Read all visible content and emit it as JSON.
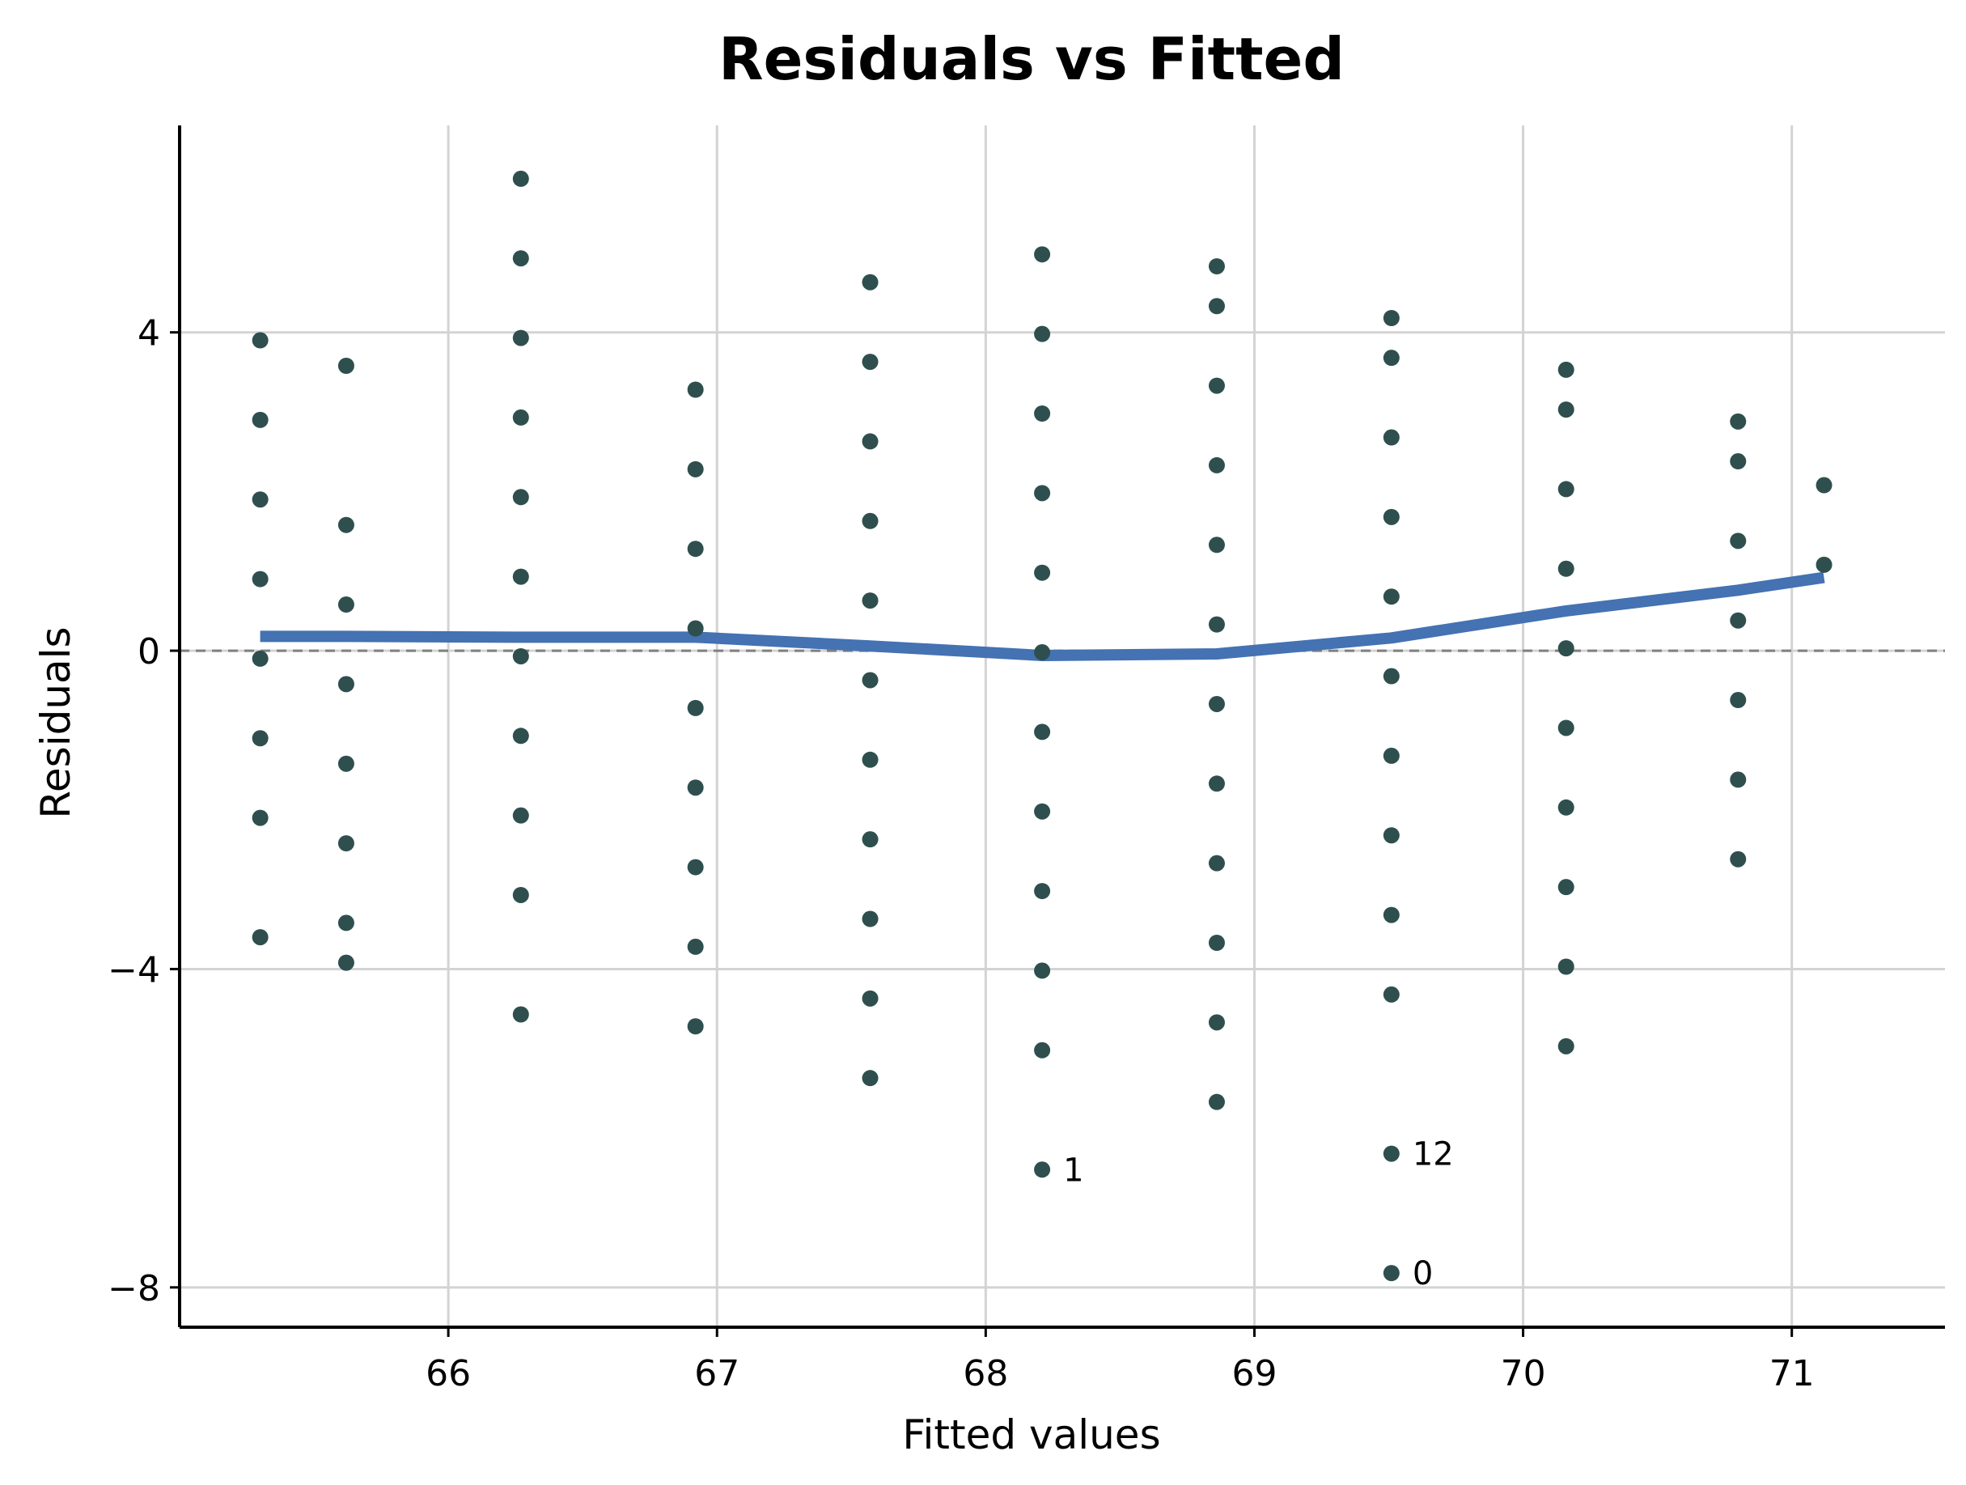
{
  "chart_data": {
    "type": "scatter",
    "title": "Residuals vs Fitted",
    "xlabel": "Fitted values",
    "ylabel": "Residuals",
    "xlim": [
      65.0,
      71.57
    ],
    "ylim": [
      -8.5,
      6.6
    ],
    "x_ticks": [
      66,
      67,
      68,
      69,
      70,
      71
    ],
    "y_ticks": [
      4,
      0,
      -4,
      -8
    ],
    "x_tick_labels": [
      "66",
      "67",
      "68",
      "69",
      "70",
      "71"
    ],
    "y_tick_labels": [
      "4",
      "0",
      "−4",
      "−8"
    ],
    "grid": true,
    "zero_reference_line": true,
    "colors": {
      "points": "#2f4f4f",
      "smooth_line": "#4472b2",
      "grid": "#d3d3d3",
      "reference_line": "#808080",
      "axis": "#000000"
    },
    "points": [
      {
        "x": 65.3,
        "y": 3.9
      },
      {
        "x": 65.3,
        "y": 2.9
      },
      {
        "x": 65.3,
        "y": 1.9
      },
      {
        "x": 65.3,
        "y": 0.9
      },
      {
        "x": 65.3,
        "y": -0.1
      },
      {
        "x": 65.3,
        "y": -1.1
      },
      {
        "x": 65.3,
        "y": -2.1
      },
      {
        "x": 65.3,
        "y": -3.6
      },
      {
        "x": 65.62,
        "y": 3.58
      },
      {
        "x": 65.62,
        "y": 1.58
      },
      {
        "x": 65.62,
        "y": 0.58
      },
      {
        "x": 65.62,
        "y": -0.42
      },
      {
        "x": 65.62,
        "y": -1.42
      },
      {
        "x": 65.62,
        "y": -2.42
      },
      {
        "x": 65.62,
        "y": -3.42
      },
      {
        "x": 65.62,
        "y": -3.92
      },
      {
        "x": 66.27,
        "y": 5.93
      },
      {
        "x": 66.27,
        "y": 4.93
      },
      {
        "x": 66.27,
        "y": 3.93
      },
      {
        "x": 66.27,
        "y": 2.93
      },
      {
        "x": 66.27,
        "y": 1.93
      },
      {
        "x": 66.27,
        "y": 0.93
      },
      {
        "x": 66.27,
        "y": -0.07
      },
      {
        "x": 66.27,
        "y": -1.07
      },
      {
        "x": 66.27,
        "y": -2.07
      },
      {
        "x": 66.27,
        "y": -3.07
      },
      {
        "x": 66.27,
        "y": -4.57
      },
      {
        "x": 66.92,
        "y": 3.28
      },
      {
        "x": 66.92,
        "y": 2.28
      },
      {
        "x": 66.92,
        "y": 1.28
      },
      {
        "x": 66.92,
        "y": 0.28
      },
      {
        "x": 66.92,
        "y": -0.72
      },
      {
        "x": 66.92,
        "y": -1.72
      },
      {
        "x": 66.92,
        "y": -2.72
      },
      {
        "x": 66.92,
        "y": -3.72
      },
      {
        "x": 66.92,
        "y": -4.72
      },
      {
        "x": 67.57,
        "y": 4.63
      },
      {
        "x": 67.57,
        "y": 3.63
      },
      {
        "x": 67.57,
        "y": 2.63
      },
      {
        "x": 67.57,
        "y": 1.63
      },
      {
        "x": 67.57,
        "y": 0.63
      },
      {
        "x": 67.57,
        "y": -0.37
      },
      {
        "x": 67.57,
        "y": -1.37
      },
      {
        "x": 67.57,
        "y": -2.37
      },
      {
        "x": 67.57,
        "y": -3.37
      },
      {
        "x": 67.57,
        "y": -4.37
      },
      {
        "x": 67.57,
        "y": -5.37
      },
      {
        "x": 68.21,
        "y": 4.98
      },
      {
        "x": 68.21,
        "y": 3.98
      },
      {
        "x": 68.21,
        "y": 2.98
      },
      {
        "x": 68.21,
        "y": 1.98
      },
      {
        "x": 68.21,
        "y": 0.98
      },
      {
        "x": 68.21,
        "y": -0.02
      },
      {
        "x": 68.21,
        "y": -1.02
      },
      {
        "x": 68.21,
        "y": -2.02
      },
      {
        "x": 68.21,
        "y": -3.02
      },
      {
        "x": 68.21,
        "y": -4.02
      },
      {
        "x": 68.21,
        "y": -5.02
      },
      {
        "x": 68.21,
        "y": -6.52,
        "label": "1"
      },
      {
        "x": 68.86,
        "y": 4.83
      },
      {
        "x": 68.86,
        "y": 4.33
      },
      {
        "x": 68.86,
        "y": 3.33
      },
      {
        "x": 68.86,
        "y": 2.33
      },
      {
        "x": 68.86,
        "y": 1.33
      },
      {
        "x": 68.86,
        "y": 0.33
      },
      {
        "x": 68.86,
        "y": -0.67
      },
      {
        "x": 68.86,
        "y": -1.67
      },
      {
        "x": 68.86,
        "y": -2.67
      },
      {
        "x": 68.86,
        "y": -3.67
      },
      {
        "x": 68.86,
        "y": -4.67
      },
      {
        "x": 68.86,
        "y": -5.67
      },
      {
        "x": 69.51,
        "y": 4.18
      },
      {
        "x": 69.51,
        "y": 3.68
      },
      {
        "x": 69.51,
        "y": 2.68
      },
      {
        "x": 69.51,
        "y": 1.68
      },
      {
        "x": 69.51,
        "y": 0.68
      },
      {
        "x": 69.51,
        "y": -0.32
      },
      {
        "x": 69.51,
        "y": -1.32
      },
      {
        "x": 69.51,
        "y": -2.32
      },
      {
        "x": 69.51,
        "y": -3.32
      },
      {
        "x": 69.51,
        "y": -4.32
      },
      {
        "x": 69.51,
        "y": -6.32,
        "label": "12"
      },
      {
        "x": 69.51,
        "y": -7.82,
        "label": "0"
      },
      {
        "x": 70.16,
        "y": 3.53
      },
      {
        "x": 70.16,
        "y": 3.03
      },
      {
        "x": 70.16,
        "y": 2.03
      },
      {
        "x": 70.16,
        "y": 1.03
      },
      {
        "x": 70.16,
        "y": 0.03
      },
      {
        "x": 70.16,
        "y": -0.97
      },
      {
        "x": 70.16,
        "y": -1.97
      },
      {
        "x": 70.16,
        "y": -2.97
      },
      {
        "x": 70.16,
        "y": -3.97
      },
      {
        "x": 70.16,
        "y": -4.97
      },
      {
        "x": 70.8,
        "y": 2.88
      },
      {
        "x": 70.8,
        "y": 2.38
      },
      {
        "x": 70.8,
        "y": 1.38
      },
      {
        "x": 70.8,
        "y": 0.38
      },
      {
        "x": 70.8,
        "y": -0.62
      },
      {
        "x": 70.8,
        "y": -1.62
      },
      {
        "x": 70.8,
        "y": -2.62
      },
      {
        "x": 71.12,
        "y": 2.08
      },
      {
        "x": 71.12,
        "y": 1.08
      }
    ],
    "smooth_line": [
      {
        "x": 65.3,
        "y": 0.18
      },
      {
        "x": 65.62,
        "y": 0.18
      },
      {
        "x": 66.27,
        "y": 0.17
      },
      {
        "x": 66.92,
        "y": 0.17
      },
      {
        "x": 67.57,
        "y": 0.06
      },
      {
        "x": 68.21,
        "y": -0.06
      },
      {
        "x": 68.86,
        "y": -0.04
      },
      {
        "x": 69.51,
        "y": 0.16
      },
      {
        "x": 70.16,
        "y": 0.5
      },
      {
        "x": 70.8,
        "y": 0.76
      },
      {
        "x": 71.12,
        "y": 0.92
      }
    ]
  }
}
